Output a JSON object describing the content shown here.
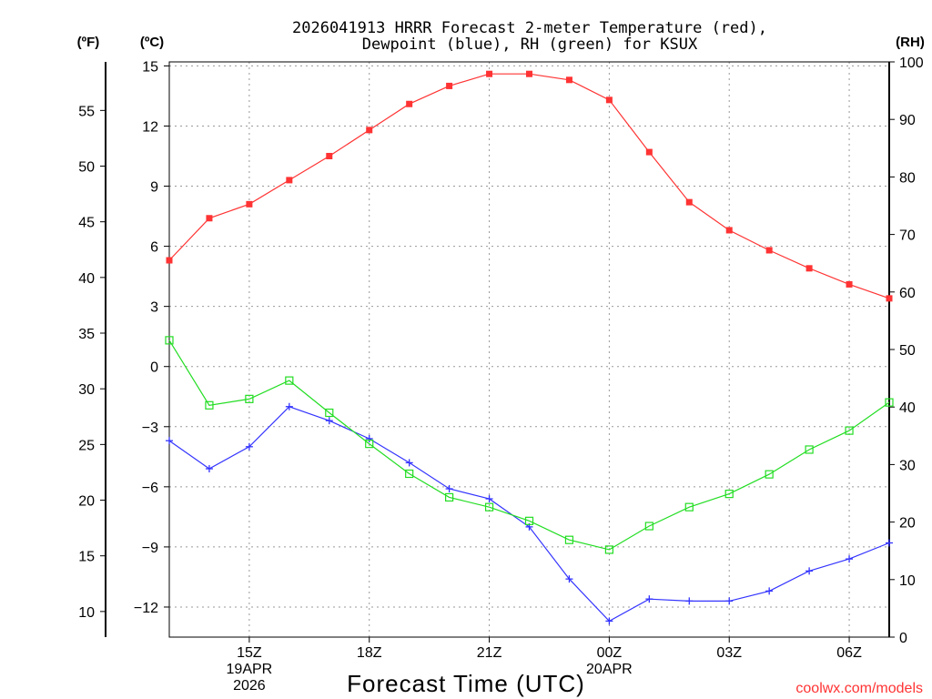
{
  "chart_data": {
    "type": "line",
    "title_line1": "2026041913 HRRR Forecast 2-meter Temperature (red),",
    "title_line2": "Dewpoint (blue), RH (green) for KSUX",
    "xlabel": "Forecast Time (UTC)",
    "left_outer_unit": "(ºF)",
    "left_inner_unit": "(ºC)",
    "right_unit": "(RH)",
    "watermark": "coolwx.com/models",
    "hours": [
      13,
      14,
      15,
      16,
      17,
      18,
      19,
      20,
      21,
      22,
      23,
      24,
      25,
      26,
      27,
      28,
      29,
      30,
      31
    ],
    "x_range": [
      13,
      31
    ],
    "c_range": [
      -13.5,
      15.2
    ],
    "rh_range": [
      0,
      100
    ],
    "f_ticks": [
      {
        "c": -12.2222,
        "label": "10"
      },
      {
        "c": -9.4444,
        "label": "15"
      },
      {
        "c": -6.6667,
        "label": "20"
      },
      {
        "c": -3.8889,
        "label": "25"
      },
      {
        "c": -1.1111,
        "label": "30"
      },
      {
        "c": 1.6667,
        "label": "35"
      },
      {
        "c": 4.4444,
        "label": "40"
      },
      {
        "c": 7.2222,
        "label": "45"
      },
      {
        "c": 10.0,
        "label": "50"
      },
      {
        "c": 12.7778,
        "label": "55"
      }
    ],
    "c_ticks": [
      {
        "v": -12,
        "label": "−12"
      },
      {
        "v": -9,
        "label": "−9"
      },
      {
        "v": -6,
        "label": "−6"
      },
      {
        "v": -3,
        "label": "−3"
      },
      {
        "v": 0,
        "label": "0"
      },
      {
        "v": 3,
        "label": "3"
      },
      {
        "v": 6,
        "label": "6"
      },
      {
        "v": 9,
        "label": "9"
      },
      {
        "v": 12,
        "label": "12"
      },
      {
        "v": 15,
        "label": "15"
      }
    ],
    "rh_ticks": [
      {
        "v": 0,
        "label": "0"
      },
      {
        "v": 10,
        "label": "10"
      },
      {
        "v": 20,
        "label": "20"
      },
      {
        "v": 30,
        "label": "30"
      },
      {
        "v": 40,
        "label": "40"
      },
      {
        "v": 50,
        "label": "50"
      },
      {
        "v": 60,
        "label": "60"
      },
      {
        "v": 70,
        "label": "70"
      },
      {
        "v": 80,
        "label": "80"
      },
      {
        "v": 90,
        "label": "90"
      },
      {
        "v": 100,
        "label": "100"
      }
    ],
    "x_ticks": [
      {
        "hour": 15,
        "lines": [
          "15Z",
          "19APR",
          "2026"
        ]
      },
      {
        "hour": 18,
        "lines": [
          "18Z"
        ]
      },
      {
        "hour": 21,
        "lines": [
          "21Z"
        ]
      },
      {
        "hour": 24,
        "lines": [
          "00Z",
          "20APR"
        ]
      },
      {
        "hour": 27,
        "lines": [
          "03Z"
        ]
      },
      {
        "hour": 30,
        "lines": [
          "06Z"
        ]
      }
    ],
    "series": [
      {
        "name": "Temperature",
        "unit": "C",
        "color": "#ff3333",
        "marker": "filled-square",
        "values": [
          5.3,
          7.4,
          8.1,
          9.3,
          10.5,
          11.8,
          13.1,
          14.0,
          14.6,
          14.6,
          14.3,
          13.3,
          10.7,
          8.2,
          6.8,
          5.8,
          4.9,
          4.1,
          3.4
        ]
      },
      {
        "name": "Dewpoint",
        "unit": "C",
        "color": "#3333ff",
        "marker": "plus",
        "values": [
          -3.7,
          -5.1,
          -4.0,
          -2.0,
          -2.7,
          -3.6,
          -4.8,
          -6.1,
          -6.6,
          -8.0,
          -10.6,
          -12.7,
          -11.6,
          -11.7,
          -11.7,
          -11.2,
          -10.2,
          -9.6,
          -8.8
        ]
      },
      {
        "name": "RH",
        "unit": "%",
        "color": "#22dd22",
        "marker": "open-square",
        "values": [
          51.6,
          40.3,
          41.4,
          44.6,
          39.0,
          33.6,
          28.4,
          24.3,
          22.6,
          20.2,
          16.9,
          15.2,
          19.3,
          22.6,
          24.9,
          28.3,
          32.6,
          35.9,
          40.8
        ]
      }
    ]
  }
}
